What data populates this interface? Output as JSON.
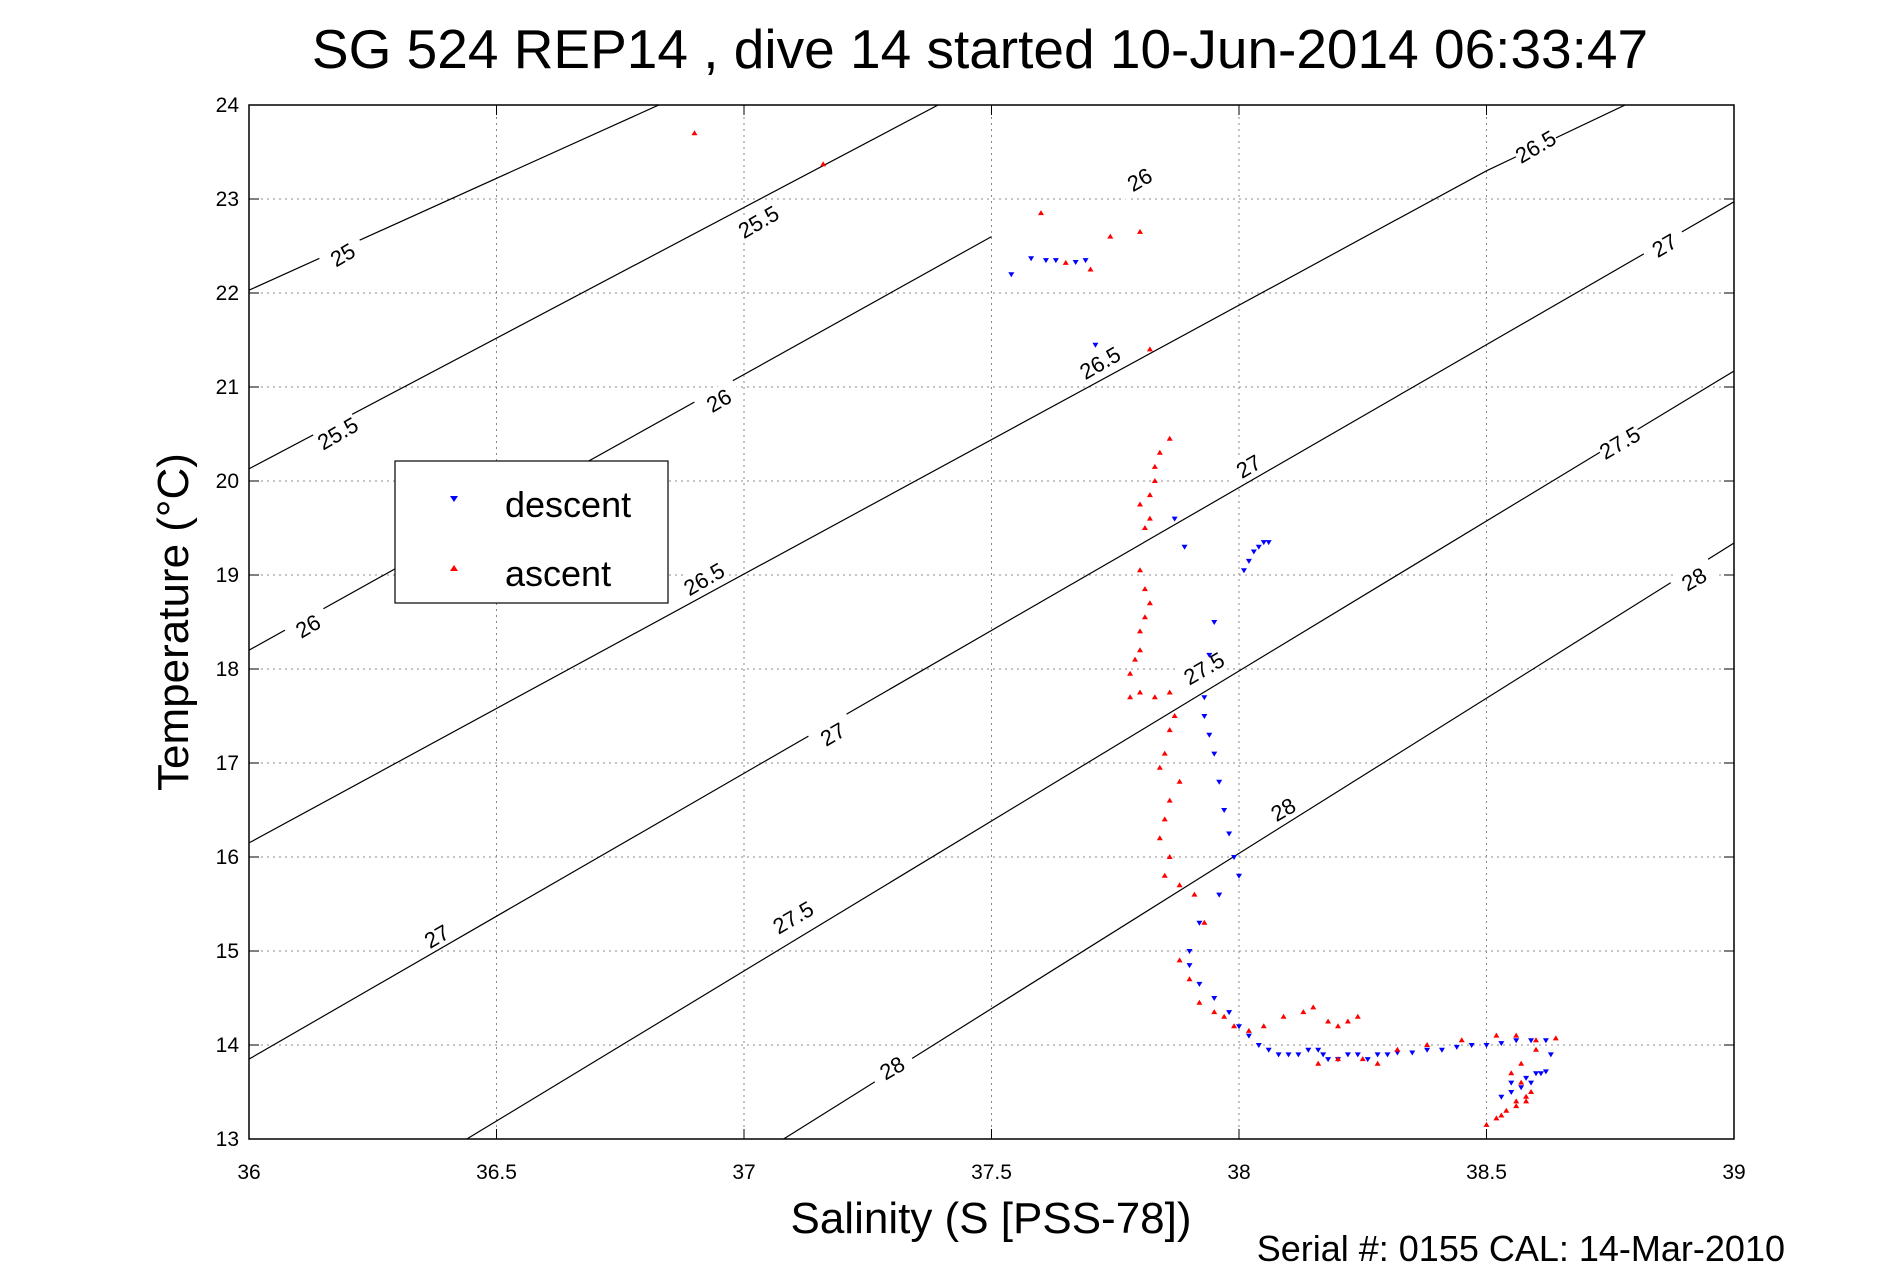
{
  "chart_data": {
    "type": "scatter",
    "title": "SG 524   REP14  , dive 14 started 10-Jun-2014 06:33:47",
    "xlabel": "Salinity (S [PSS-78])",
    "ylabel": "Temperature (°C)",
    "xlim": [
      36,
      39
    ],
    "ylim": [
      13,
      24
    ],
    "xticks": [
      "36",
      "36.5",
      "37",
      "37.5",
      "38",
      "38.5",
      "39"
    ],
    "yticks": [
      "13",
      "14",
      "15",
      "16",
      "17",
      "18",
      "19",
      "20",
      "21",
      "22",
      "23",
      "24"
    ],
    "grid": true,
    "legend_position": "upper-left",
    "footer": "Serial #: 0155  CAL: 14-Mar-2010",
    "contours": {
      "note_units": "sigma-theta (kg/m^3 - 1000)",
      "lines": [
        {
          "level": "25",
          "points": [
            [
              36,
              22.03
            ],
            [
              37.5,
              25.6
            ]
          ]
        },
        {
          "level": "25.5",
          "points": [
            [
              36,
              20.13
            ],
            [
              37.5,
              24.3
            ]
          ]
        },
        {
          "level": "26",
          "points": [
            [
              36,
              18.2
            ],
            [
              37.5,
              22.6
            ]
          ]
        },
        {
          "level": "26.5",
          "points": [
            [
              36,
              16.15
            ],
            [
              38.5,
              23.3
            ],
            [
              39,
              24.55
            ]
          ]
        },
        {
          "level": "27",
          "points": [
            [
              36,
              13.85
            ],
            [
              39,
              22.97
            ]
          ]
        },
        {
          "level": "27.5",
          "points": [
            [
              36.44,
              13
            ],
            [
              39,
              21.17
            ]
          ]
        },
        {
          "level": "28",
          "points": [
            [
              37.08,
              13
            ],
            [
              39,
              19.34
            ]
          ]
        }
      ],
      "labels": [
        {
          "text": "25",
          "s": 36.19,
          "t": 22.4
        },
        {
          "text": "25.5",
          "s": 36.18,
          "t": 20.5
        },
        {
          "text": "26",
          "s": 36.12,
          "t": 18.45
        },
        {
          "text": "27",
          "s": 36.38,
          "t": 15.15
        },
        {
          "text": "25.5",
          "s": 37.03,
          "t": 22.75
        },
        {
          "text": "26",
          "s": 36.95,
          "t": 20.85
        },
        {
          "text": "26.5",
          "s": 36.92,
          "t": 18.95
        },
        {
          "text": "27",
          "s": 37.18,
          "t": 17.3
        },
        {
          "text": "27.5",
          "s": 37.1,
          "t": 15.35
        },
        {
          "text": "28",
          "s": 37.3,
          "t": 13.75
        },
        {
          "text": "26",
          "s": 37.8,
          "t": 23.2
        },
        {
          "text": "26.5",
          "s": 37.72,
          "t": 21.25
        },
        {
          "text": "27",
          "s": 38.02,
          "t": 20.15
        },
        {
          "text": "27.5",
          "s": 37.93,
          "t": 18.0
        },
        {
          "text": "28",
          "s": 38.09,
          "t": 16.5
        },
        {
          "text": "26.5",
          "s": 38.6,
          "t": 23.55
        },
        {
          "text": "27",
          "s": 38.86,
          "t": 22.5
        },
        {
          "text": "27.5",
          "s": 38.77,
          "t": 20.4
        },
        {
          "text": "28",
          "s": 38.92,
          "t": 18.95
        }
      ]
    },
    "series": [
      {
        "name": "descent",
        "color": "#0000ff",
        "marker": "triangle-down",
        "points": [
          [
            37.54,
            22.2
          ],
          [
            37.58,
            22.37
          ],
          [
            37.61,
            22.35
          ],
          [
            37.63,
            22.35
          ],
          [
            37.67,
            22.33
          ],
          [
            37.69,
            22.35
          ],
          [
            37.71,
            21.45
          ],
          [
            37.87,
            19.6
          ],
          [
            37.89,
            19.3
          ],
          [
            38.01,
            19.05
          ],
          [
            38.02,
            19.15
          ],
          [
            38.03,
            19.25
          ],
          [
            38.04,
            19.3
          ],
          [
            38.05,
            19.35
          ],
          [
            38.06,
            19.35
          ],
          [
            37.95,
            18.5
          ],
          [
            37.94,
            18.15
          ],
          [
            37.93,
            17.7
          ],
          [
            37.93,
            17.5
          ],
          [
            37.94,
            17.3
          ],
          [
            37.95,
            17.1
          ],
          [
            37.96,
            16.8
          ],
          [
            37.97,
            16.5
          ],
          [
            37.98,
            16.25
          ],
          [
            37.99,
            16.0
          ],
          [
            38.0,
            15.8
          ],
          [
            37.96,
            15.6
          ],
          [
            37.92,
            15.3
          ],
          [
            37.9,
            15.0
          ],
          [
            37.9,
            14.85
          ],
          [
            37.92,
            14.65
          ],
          [
            37.95,
            14.5
          ],
          [
            37.98,
            14.35
          ],
          [
            38.0,
            14.2
          ],
          [
            38.02,
            14.1
          ],
          [
            38.04,
            14.0
          ],
          [
            38.06,
            13.95
          ],
          [
            38.08,
            13.9
          ],
          [
            38.1,
            13.9
          ],
          [
            38.12,
            13.9
          ],
          [
            38.14,
            13.95
          ],
          [
            38.16,
            13.95
          ],
          [
            38.17,
            13.9
          ],
          [
            38.18,
            13.85
          ],
          [
            38.2,
            13.85
          ],
          [
            38.22,
            13.9
          ],
          [
            38.24,
            13.9
          ],
          [
            38.26,
            13.85
          ],
          [
            38.28,
            13.9
          ],
          [
            38.3,
            13.9
          ],
          [
            38.32,
            13.92
          ],
          [
            38.35,
            13.92
          ],
          [
            38.38,
            13.95
          ],
          [
            38.41,
            13.95
          ],
          [
            38.44,
            13.98
          ],
          [
            38.47,
            14.0
          ],
          [
            38.5,
            14.0
          ],
          [
            38.53,
            14.02
          ],
          [
            38.56,
            14.05
          ],
          [
            38.59,
            14.05
          ],
          [
            38.62,
            14.05
          ],
          [
            38.63,
            13.9
          ],
          [
            38.61,
            13.7
          ],
          [
            38.59,
            13.6
          ],
          [
            38.57,
            13.55
          ],
          [
            38.55,
            13.5
          ],
          [
            38.53,
            13.45
          ],
          [
            38.55,
            13.6
          ],
          [
            38.58,
            13.65
          ],
          [
            38.6,
            13.7
          ],
          [
            38.62,
            13.72
          ]
        ]
      },
      {
        "name": "ascent",
        "color": "#ff0000",
        "marker": "triangle-up",
        "points": [
          [
            36.9,
            23.7
          ],
          [
            37.16,
            23.37
          ],
          [
            37.6,
            22.85
          ],
          [
            37.65,
            22.32
          ],
          [
            37.7,
            22.25
          ],
          [
            37.74,
            22.6
          ],
          [
            37.8,
            22.65
          ],
          [
            37.82,
            21.4
          ],
          [
            37.86,
            20.45
          ],
          [
            37.84,
            20.3
          ],
          [
            37.83,
            20.15
          ],
          [
            37.83,
            20.0
          ],
          [
            37.82,
            19.85
          ],
          [
            37.8,
            19.75
          ],
          [
            37.82,
            19.6
          ],
          [
            37.81,
            19.5
          ],
          [
            37.8,
            19.05
          ],
          [
            37.81,
            18.85
          ],
          [
            37.82,
            18.7
          ],
          [
            37.81,
            18.55
          ],
          [
            37.8,
            18.4
          ],
          [
            37.8,
            18.2
          ],
          [
            37.79,
            18.1
          ],
          [
            37.78,
            17.95
          ],
          [
            37.78,
            17.7
          ],
          [
            37.8,
            17.75
          ],
          [
            37.83,
            17.7
          ],
          [
            37.86,
            17.75
          ],
          [
            37.87,
            17.5
          ],
          [
            37.86,
            17.35
          ],
          [
            37.85,
            17.1
          ],
          [
            37.88,
            16.8
          ],
          [
            37.84,
            16.95
          ],
          [
            37.86,
            16.6
          ],
          [
            37.85,
            16.4
          ],
          [
            37.84,
            16.2
          ],
          [
            37.86,
            16.0
          ],
          [
            37.85,
            15.8
          ],
          [
            37.88,
            15.7
          ],
          [
            37.91,
            15.6
          ],
          [
            37.93,
            15.3
          ],
          [
            37.88,
            14.9
          ],
          [
            37.9,
            14.7
          ],
          [
            37.92,
            14.45
          ],
          [
            37.95,
            14.35
          ],
          [
            37.97,
            14.3
          ],
          [
            37.99,
            14.2
          ],
          [
            38.02,
            14.15
          ],
          [
            38.05,
            14.2
          ],
          [
            38.09,
            14.3
          ],
          [
            38.13,
            14.35
          ],
          [
            38.15,
            14.4
          ],
          [
            38.18,
            14.25
          ],
          [
            38.2,
            14.2
          ],
          [
            38.22,
            14.25
          ],
          [
            38.24,
            14.3
          ],
          [
            38.16,
            13.8
          ],
          [
            38.2,
            13.85
          ],
          [
            38.25,
            13.85
          ],
          [
            38.28,
            13.8
          ],
          [
            38.32,
            13.95
          ],
          [
            38.38,
            14.0
          ],
          [
            38.45,
            14.05
          ],
          [
            38.52,
            14.1
          ],
          [
            38.56,
            14.1
          ],
          [
            38.6,
            14.05
          ],
          [
            38.64,
            14.07
          ],
          [
            38.6,
            13.95
          ],
          [
            38.57,
            13.8
          ],
          [
            38.55,
            13.7
          ],
          [
            38.57,
            13.6
          ],
          [
            38.59,
            13.5
          ],
          [
            38.58,
            13.4
          ],
          [
            38.56,
            13.35
          ],
          [
            38.54,
            13.3
          ],
          [
            38.52,
            13.22
          ],
          [
            38.5,
            13.15
          ],
          [
            38.53,
            13.25
          ],
          [
            38.56,
            13.4
          ],
          [
            38.58,
            13.45
          ]
        ]
      }
    ]
  }
}
